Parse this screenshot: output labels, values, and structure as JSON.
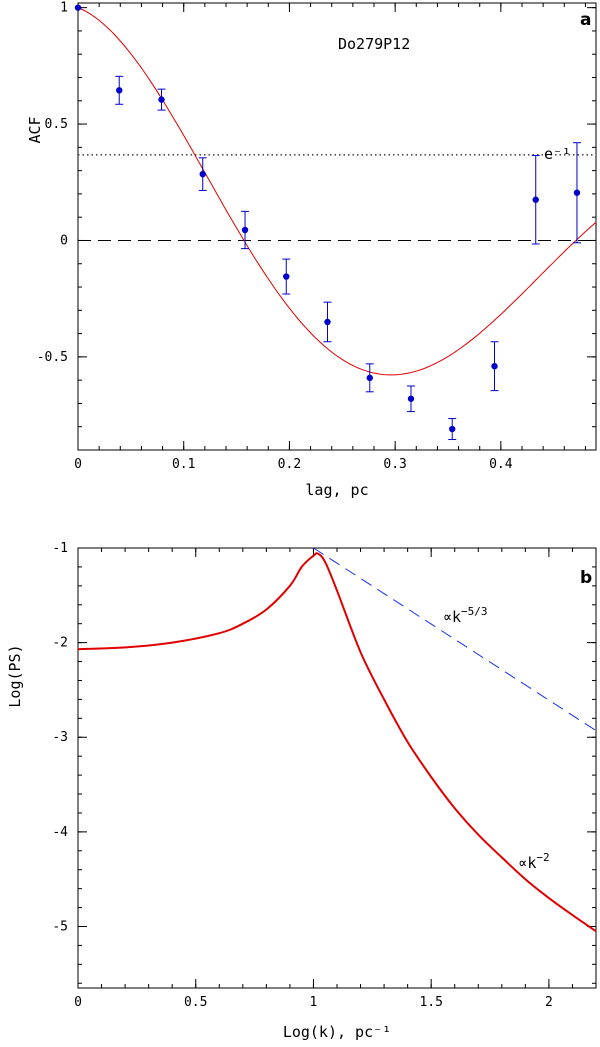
{
  "chart_data": [
    {
      "type": "scatter",
      "panel_label": "a",
      "title": "Do279P12",
      "xlabel": "lag, pc",
      "ylabel": "ACF",
      "xlim": [
        0,
        0.49
      ],
      "ylim": [
        -0.9,
        1.02
      ],
      "xticks": [
        "0",
        "0.1",
        "0.2",
        "0.3",
        "0.4"
      ],
      "xtick_values": [
        0,
        0.1,
        0.2,
        0.3,
        0.4
      ],
      "yticks": [
        "-0.5",
        "0",
        "0.5",
        "1"
      ],
      "ytick_values": [
        -0.5,
        0,
        0.5,
        1
      ],
      "points": {
        "x": [
          0.0,
          0.039,
          0.079,
          0.118,
          0.158,
          0.197,
          0.236,
          0.276,
          0.315,
          0.354,
          0.394,
          0.433,
          0.472
        ],
        "y": [
          1.0,
          0.645,
          0.605,
          0.285,
          0.045,
          -0.155,
          -0.35,
          -0.59,
          -0.68,
          -0.81,
          -0.54,
          0.175,
          0.205
        ],
        "err": [
          0.0,
          0.06,
          0.045,
          0.07,
          0.08,
          0.075,
          0.085,
          0.06,
          0.055,
          0.045,
          0.105,
          0.19,
          0.215
        ],
        "color": "#0000cc"
      },
      "model_curve": {
        "name": "model fit",
        "color": "#e00000",
        "min_x": 0.29,
        "min_y": -0.59,
        "zero_x": 0.157
      },
      "reference_lines": [
        {
          "y": 0.3679,
          "style": "dotted",
          "label": "e⁻¹"
        },
        {
          "y": 0.0,
          "style": "dashed"
        }
      ]
    },
    {
      "type": "line",
      "panel_label": "b",
      "xlabel": "Log(k), pc⁻¹",
      "ylabel": "Log(PS)",
      "xlim": [
        0,
        2.2
      ],
      "ylim": [
        -5.65,
        -1
      ],
      "xticks": [
        "0",
        "0.5",
        "1",
        "1.5",
        "2"
      ],
      "xtick_values": [
        0,
        0.5,
        1,
        1.5,
        2
      ],
      "yticks": [
        "-5",
        "-4",
        "-3",
        "-2",
        "-1"
      ],
      "ytick_values": [
        -5,
        -4,
        -3,
        -2,
        -1
      ],
      "series": [
        {
          "name": "power spectrum",
          "color": "#e00000",
          "x": [
            0,
            0.2,
            0.4,
            0.6,
            0.7,
            0.8,
            0.9,
            0.95,
            1.0,
            1.02,
            1.05,
            1.1,
            1.2,
            1.3,
            1.4,
            1.5,
            1.6,
            1.7,
            1.8,
            1.9,
            2.0,
            2.1,
            2.2
          ],
          "y": [
            -2.07,
            -2.05,
            -2.0,
            -1.9,
            -1.8,
            -1.65,
            -1.4,
            -1.2,
            -1.08,
            -1.06,
            -1.15,
            -1.45,
            -2.1,
            -2.6,
            -3.05,
            -3.42,
            -3.75,
            -4.03,
            -4.27,
            -4.5,
            -4.7,
            -4.88,
            -5.05
          ]
        },
        {
          "name": "k^-5/3 reference",
          "color": "#1a33ee",
          "style": "dashed",
          "x": [
            1.0,
            2.2
          ],
          "y": [
            -1.0,
            -2.93
          ]
        }
      ],
      "annotations": [
        {
          "base": "∝k",
          "exp": "−5/3",
          "at_x": 1.55,
          "at_y": -1.78
        },
        {
          "base": "∝k",
          "exp": "−2",
          "at_x": 1.87,
          "at_y": -4.38
        }
      ]
    }
  ]
}
